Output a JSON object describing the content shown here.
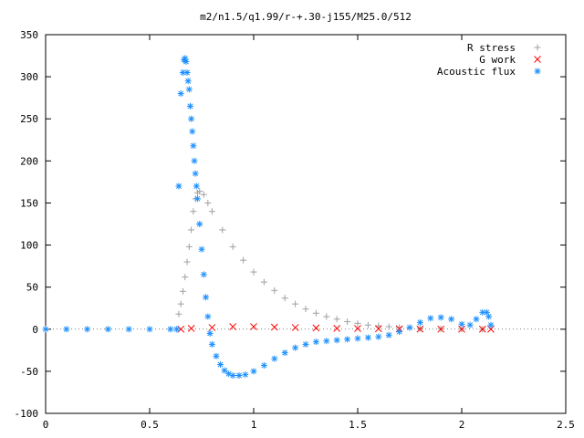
{
  "chart_data": {
    "type": "scatter",
    "title": "m2/n1.5/q1.99/r-+.30-j155/M25.0/512",
    "xlabel": "",
    "ylabel": "",
    "xlim": [
      0,
      2.5
    ],
    "ylim": [
      -100,
      350
    ],
    "x_ticks": [
      "0",
      "0.5",
      "1",
      "1.5",
      "2",
      "2.5"
    ],
    "y_ticks": [
      "-100",
      "-50",
      "0",
      "50",
      "100",
      "150",
      "200",
      "250",
      "300",
      "350"
    ],
    "grid": false,
    "legend_position": "top-right",
    "series": [
      {
        "name": "R stress",
        "marker": "+",
        "color": "#a0a0a0",
        "points": [
          [
            0.64,
            18
          ],
          [
            0.65,
            30
          ],
          [
            0.66,
            45
          ],
          [
            0.67,
            62
          ],
          [
            0.68,
            80
          ],
          [
            0.69,
            98
          ],
          [
            0.7,
            118
          ],
          [
            0.71,
            140
          ],
          [
            0.72,
            155
          ],
          [
            0.73,
            162
          ],
          [
            0.74,
            164
          ],
          [
            0.76,
            160
          ],
          [
            0.78,
            150
          ],
          [
            0.8,
            140
          ],
          [
            0.85,
            118
          ],
          [
            0.9,
            98
          ],
          [
            0.95,
            82
          ],
          [
            1.0,
            68
          ],
          [
            1.05,
            56
          ],
          [
            1.1,
            46
          ],
          [
            1.15,
            37
          ],
          [
            1.2,
            30
          ],
          [
            1.25,
            24
          ],
          [
            1.3,
            19
          ],
          [
            1.35,
            15
          ],
          [
            1.4,
            12
          ],
          [
            1.45,
            9
          ],
          [
            1.5,
            7
          ],
          [
            1.55,
            5
          ],
          [
            1.6,
            4
          ],
          [
            1.65,
            3
          ],
          [
            1.7,
            2
          ],
          [
            1.75,
            1.5
          ],
          [
            1.8,
            1
          ],
          [
            1.9,
            0.5
          ],
          [
            2.0,
            0.2
          ],
          [
            2.1,
            0
          ]
        ]
      },
      {
        "name": "G work",
        "marker": "x",
        "color": "#ff0000",
        "points": [
          [
            0.65,
            0
          ],
          [
            0.7,
            1
          ],
          [
            0.8,
            2
          ],
          [
            0.9,
            3
          ],
          [
            1.0,
            3
          ],
          [
            1.1,
            2.5
          ],
          [
            1.2,
            2
          ],
          [
            1.3,
            1.5
          ],
          [
            1.4,
            1
          ],
          [
            1.5,
            0.8
          ],
          [
            1.6,
            0.6
          ],
          [
            1.7,
            0.4
          ],
          [
            1.8,
            0.2
          ],
          [
            1.9,
            0.1
          ],
          [
            2.0,
            0
          ],
          [
            2.1,
            0
          ],
          [
            2.14,
            0
          ]
        ]
      },
      {
        "name": "Acoustic flux",
        "marker": "*",
        "color": "#1e90ff",
        "points": [
          [
            0.0,
            0
          ],
          [
            0.1,
            0
          ],
          [
            0.2,
            0
          ],
          [
            0.3,
            0
          ],
          [
            0.4,
            0
          ],
          [
            0.5,
            0
          ],
          [
            0.6,
            0
          ],
          [
            0.63,
            0
          ],
          [
            0.64,
            170
          ],
          [
            0.65,
            280
          ],
          [
            0.66,
            305
          ],
          [
            0.665,
            320
          ],
          [
            0.67,
            322
          ],
          [
            0.675,
            318
          ],
          [
            0.68,
            305
          ],
          [
            0.685,
            295
          ],
          [
            0.69,
            285
          ],
          [
            0.695,
            265
          ],
          [
            0.7,
            250
          ],
          [
            0.705,
            235
          ],
          [
            0.71,
            218
          ],
          [
            0.715,
            200
          ],
          [
            0.72,
            185
          ],
          [
            0.725,
            170
          ],
          [
            0.73,
            155
          ],
          [
            0.74,
            125
          ],
          [
            0.75,
            95
          ],
          [
            0.76,
            65
          ],
          [
            0.77,
            38
          ],
          [
            0.78,
            15
          ],
          [
            0.79,
            -5
          ],
          [
            0.8,
            -18
          ],
          [
            0.82,
            -32
          ],
          [
            0.84,
            -42
          ],
          [
            0.86,
            -49
          ],
          [
            0.88,
            -53
          ],
          [
            0.9,
            -55
          ],
          [
            0.93,
            -55
          ],
          [
            0.96,
            -54
          ],
          [
            1.0,
            -50
          ],
          [
            1.05,
            -43
          ],
          [
            1.1,
            -35
          ],
          [
            1.15,
            -28
          ],
          [
            1.2,
            -22
          ],
          [
            1.25,
            -18
          ],
          [
            1.3,
            -15
          ],
          [
            1.35,
            -14
          ],
          [
            1.4,
            -13
          ],
          [
            1.45,
            -12
          ],
          [
            1.5,
            -11
          ],
          [
            1.55,
            -10
          ],
          [
            1.6,
            -9
          ],
          [
            1.65,
            -7
          ],
          [
            1.7,
            -3
          ],
          [
            1.75,
            2
          ],
          [
            1.8,
            8
          ],
          [
            1.85,
            13
          ],
          [
            1.9,
            14
          ],
          [
            1.95,
            12
          ],
          [
            2.0,
            6
          ],
          [
            2.04,
            5
          ],
          [
            2.07,
            12
          ],
          [
            2.1,
            20
          ],
          [
            2.12,
            20
          ],
          [
            2.13,
            15
          ],
          [
            2.14,
            5
          ]
        ]
      }
    ]
  }
}
